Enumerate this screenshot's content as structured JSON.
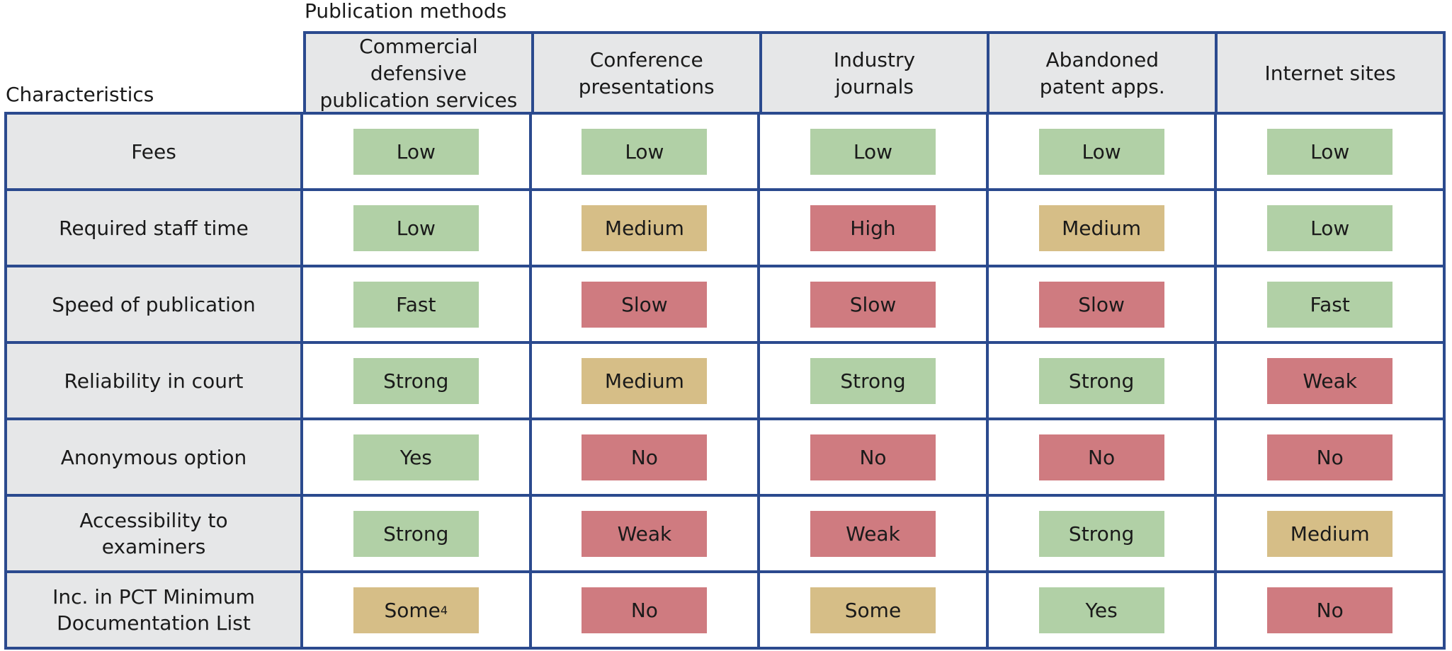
{
  "labels": {
    "publication_methods": "Publication methods",
    "characteristics": "Characteristics"
  },
  "columns": [
    "Commercial defensive\npublication services",
    "Conference\npresentations",
    "Industry\njournals",
    "Abandoned\npatent apps.",
    "Internet sites"
  ],
  "rows": [
    {
      "label": "Fees",
      "values": [
        {
          "text": "Low",
          "level": "green"
        },
        {
          "text": "Low",
          "level": "green"
        },
        {
          "text": "Low",
          "level": "green"
        },
        {
          "text": "Low",
          "level": "green"
        },
        {
          "text": "Low",
          "level": "green"
        }
      ]
    },
    {
      "label": "Required staff time",
      "values": [
        {
          "text": "Low",
          "level": "green"
        },
        {
          "text": "Medium",
          "level": "tan"
        },
        {
          "text": "High",
          "level": "red"
        },
        {
          "text": "Medium",
          "level": "tan"
        },
        {
          "text": "Low",
          "level": "green"
        }
      ]
    },
    {
      "label": "Speed of publication",
      "values": [
        {
          "text": "Fast",
          "level": "green"
        },
        {
          "text": "Slow",
          "level": "red"
        },
        {
          "text": "Slow",
          "level": "red"
        },
        {
          "text": "Slow",
          "level": "red"
        },
        {
          "text": "Fast",
          "level": "green"
        }
      ]
    },
    {
      "label": "Reliability in court",
      "values": [
        {
          "text": "Strong",
          "level": "green"
        },
        {
          "text": "Medium",
          "level": "tan"
        },
        {
          "text": "Strong",
          "level": "green"
        },
        {
          "text": "Strong",
          "level": "green"
        },
        {
          "text": "Weak",
          "level": "red"
        }
      ]
    },
    {
      "label": "Anonymous option",
      "values": [
        {
          "text": "Yes",
          "level": "green"
        },
        {
          "text": "No",
          "level": "red"
        },
        {
          "text": "No",
          "level": "red"
        },
        {
          "text": "No",
          "level": "red"
        },
        {
          "text": "No",
          "level": "red"
        }
      ]
    },
    {
      "label": "Accessibility to\nexaminers",
      "values": [
        {
          "text": "Strong",
          "level": "green"
        },
        {
          "text": "Weak",
          "level": "red"
        },
        {
          "text": "Weak",
          "level": "red"
        },
        {
          "text": "Strong",
          "level": "green"
        },
        {
          "text": "Medium",
          "level": "tan"
        }
      ]
    },
    {
      "label": "Inc. in PCT Minimum\nDocumentation List",
      "values": [
        {
          "text": "Some",
          "sup": "4",
          "level": "tan"
        },
        {
          "text": "No",
          "level": "red"
        },
        {
          "text": "Some",
          "level": "tan"
        },
        {
          "text": "Yes",
          "level": "green"
        },
        {
          "text": "No",
          "level": "red"
        }
      ]
    }
  ],
  "colors": {
    "green": "#b1d0a6",
    "tan": "#d6be87",
    "red": "#cf7b80",
    "border": "#2b4a8e",
    "header_bg": "#e6e7e8"
  }
}
